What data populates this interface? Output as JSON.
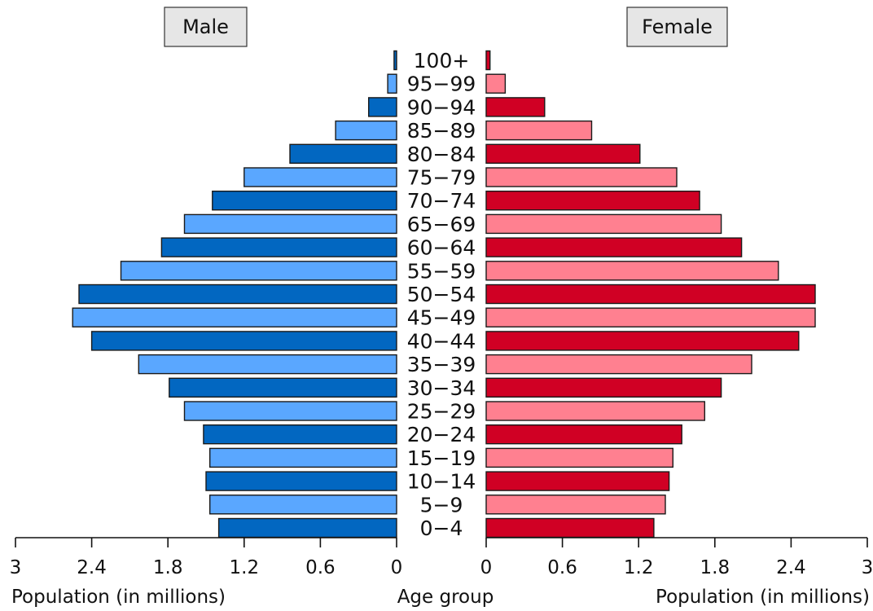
{
  "chart_data": {
    "type": "bar",
    "orientation": "horizontal",
    "subtype": "population-pyramid",
    "categories": [
      "0-4",
      "5-9",
      "10-14",
      "15-19",
      "20-24",
      "25-29",
      "30-34",
      "35-39",
      "40-44",
      "45-49",
      "50-54",
      "55-59",
      "60-64",
      "65-69",
      "70-74",
      "75-79",
      "80-84",
      "85-89",
      "90-94",
      "95-99",
      "100+"
    ],
    "category_labels": [
      "0−4",
      "5−9",
      "10−14",
      "15−19",
      "20−24",
      "25−29",
      "30−34",
      "35−39",
      "40−44",
      "45−49",
      "50−54",
      "55−59",
      "60−64",
      "65−69",
      "70−74",
      "75−79",
      "80−84",
      "85−89",
      "90−94",
      "95−99",
      "100+"
    ],
    "series": [
      {
        "name": "Male",
        "side": "left",
        "colors": [
          "#0267c1",
          "#5aa7ff"
        ],
        "values": [
          1.4,
          1.47,
          1.5,
          1.47,
          1.52,
          1.67,
          1.79,
          2.03,
          2.4,
          2.55,
          2.5,
          2.17,
          1.85,
          1.67,
          1.45,
          1.2,
          0.84,
          0.48,
          0.22,
          0.07,
          0.02
        ]
      },
      {
        "name": "Female",
        "side": "right",
        "colors": [
          "#d00024",
          "#ff8090"
        ],
        "values": [
          1.32,
          1.41,
          1.44,
          1.47,
          1.54,
          1.72,
          1.85,
          2.09,
          2.46,
          2.59,
          2.59,
          2.3,
          2.01,
          1.85,
          1.68,
          1.5,
          1.21,
          0.83,
          0.46,
          0.15,
          0.03
        ]
      }
    ],
    "xlim": [
      0,
      3
    ],
    "xticks": [
      "3",
      "2.4",
      "1.8",
      "1.2",
      "0.6",
      "0"
    ],
    "xticks_right": [
      "0",
      "0.6",
      "1.2",
      "1.8",
      "2.4",
      "3"
    ],
    "xlabel_left": "Population (in millions)",
    "xlabel_right": "Population (in millions)",
    "center_label": "Age group",
    "left_title": "Male",
    "right_title": "Female",
    "grid": false
  }
}
